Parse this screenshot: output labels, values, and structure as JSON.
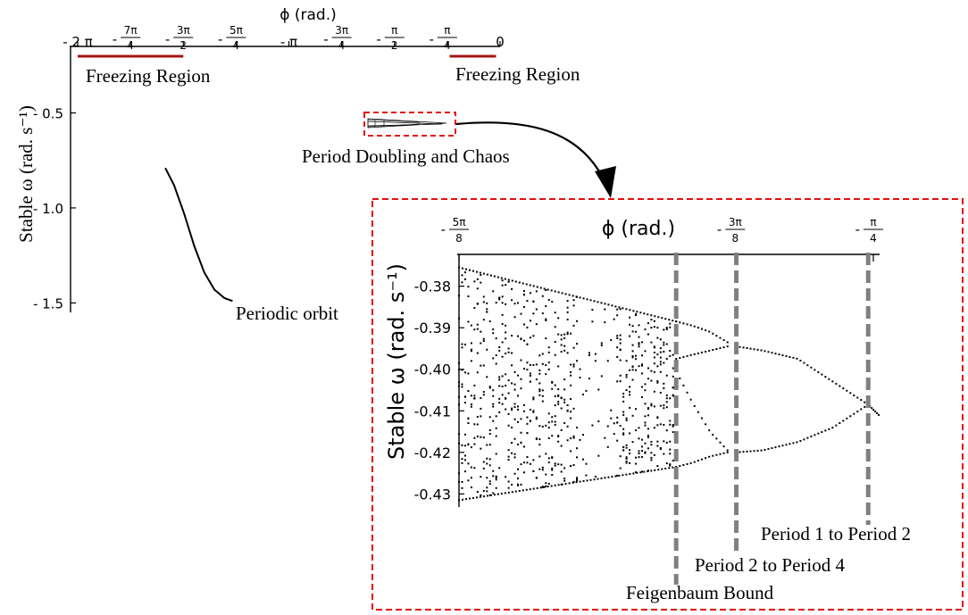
{
  "colors": {
    "ink": "#000000",
    "freezing": "#a31515",
    "highlight": "#e31010",
    "marker": "#808080"
  },
  "chart_data": [
    {
      "type": "line",
      "title": "",
      "xlabel": "ϕ (rad.)",
      "ylabel": "Stable ω (rad. s⁻¹)",
      "xlim": [
        -6.2832,
        0
      ],
      "ylim": [
        -1.55,
        -0.15
      ],
      "x_ticks": [
        {
          "num": "2",
          "den": "",
          "sym": "π",
          "value": -6.2832
        },
        {
          "num": "7π",
          "den": "4",
          "sym": "",
          "value": -5.4978
        },
        {
          "num": "3π",
          "den": "2",
          "sym": "",
          "value": -4.7124
        },
        {
          "num": "5π",
          "den": "4",
          "sym": "",
          "value": -3.927
        },
        {
          "num": "",
          "den": "",
          "sym": "π",
          "value": -3.1416
        },
        {
          "num": "3π",
          "den": "4",
          "sym": "",
          "value": -2.3562
        },
        {
          "num": "π",
          "den": "2",
          "sym": "",
          "value": -1.5708
        },
        {
          "num": "π",
          "den": "4",
          "sym": "",
          "value": -0.7854
        },
        {
          "num": "0",
          "den": "",
          "sym": "",
          "value": 0
        }
      ],
      "y_ticks": [
        -0.5,
        -1.0,
        -1.5
      ],
      "series": [
        {
          "x": [
            -4.98,
            -4.85,
            -4.7,
            -4.55,
            -4.4,
            -4.25,
            -4.1,
            -3.98
          ],
          "y": [
            -0.79,
            -0.88,
            -1.03,
            -1.2,
            -1.34,
            -1.43,
            -1.475,
            -1.49
          ]
        }
      ],
      "freezing_regions": [
        [
          -6.2832,
          -4.712
        ],
        [
          -0.75,
          -0.06
        ]
      ],
      "annotations": {
        "freezing_left": "Freezing Region",
        "freezing_right": "Freezing Region",
        "periodic": "Periodic orbit",
        "chaos": "Period Doubling and Chaos"
      }
    },
    {
      "type": "scatter",
      "title": "",
      "xlabel": "ϕ (rad.)",
      "ylabel": "Stable ω (rad. s⁻¹)",
      "xlim": [
        -1.9635,
        -0.7854
      ],
      "ylim": [
        -0.4325,
        -0.3745
      ],
      "x_ticks": [
        {
          "num": "5π",
          "den": "8",
          "value": -1.9635
        },
        {
          "num": "3π",
          "den": "8",
          "value": -1.1781
        },
        {
          "num": "π",
          "den": "4",
          "value": -0.7854
        }
      ],
      "y_ticks": [
        -0.38,
        -0.39,
        -0.4,
        -0.41,
        -0.42,
        -0.43
      ],
      "bifurcation_lines": [
        {
          "x": -1.346,
          "label": "Feigenbaum Bound"
        },
        {
          "x": -1.175,
          "label": "Period 2 to Period 4"
        },
        {
          "x": -0.8,
          "label": "Period 1 to Period 2"
        }
      ],
      "branches": {
        "chaos_upper_edge": {
          "x": [
            -1.9635,
            -1.346
          ],
          "y": [
            -0.3755,
            -0.3885
          ]
        },
        "chaos_lower_edge": {
          "x": [
            -1.9635,
            -1.346
          ],
          "y": [
            -0.4315,
            -0.4235
          ]
        },
        "period4_outer_upper": {
          "x": [
            -1.346,
            -1.3,
            -1.25,
            -1.2
          ],
          "y": [
            -0.3885,
            -0.3895,
            -0.391,
            -0.3935
          ]
        },
        "period4_inner_upper": {
          "x": [
            -1.346,
            -1.3,
            -1.25,
            -1.2
          ],
          "y": [
            -0.3975,
            -0.3965,
            -0.3955,
            -0.3945
          ]
        },
        "period4_inner_lower": {
          "x": [
            -1.346,
            -1.3,
            -1.25,
            -1.2
          ],
          "y": [
            -0.4005,
            -0.408,
            -0.415,
            -0.4195
          ]
        },
        "period4_outer_lower": {
          "x": [
            -1.346,
            -1.3,
            -1.25,
            -1.2
          ],
          "y": [
            -0.4235,
            -0.4225,
            -0.421,
            -0.42
          ]
        },
        "period2_upper": {
          "x": [
            -1.175,
            -1.1,
            -1.0,
            -0.9,
            -0.8
          ],
          "y": [
            -0.3945,
            -0.3955,
            -0.3975,
            -0.403,
            -0.4085
          ]
        },
        "period2_lower": {
          "x": [
            -1.175,
            -1.1,
            -1.0,
            -0.9,
            -0.8
          ],
          "y": [
            -0.42,
            -0.4195,
            -0.4175,
            -0.414,
            -0.4085
          ]
        },
        "period1": {
          "x": [
            -0.8,
            -0.77
          ],
          "y": [
            -0.4085,
            -0.411
          ]
        }
      }
    }
  ]
}
